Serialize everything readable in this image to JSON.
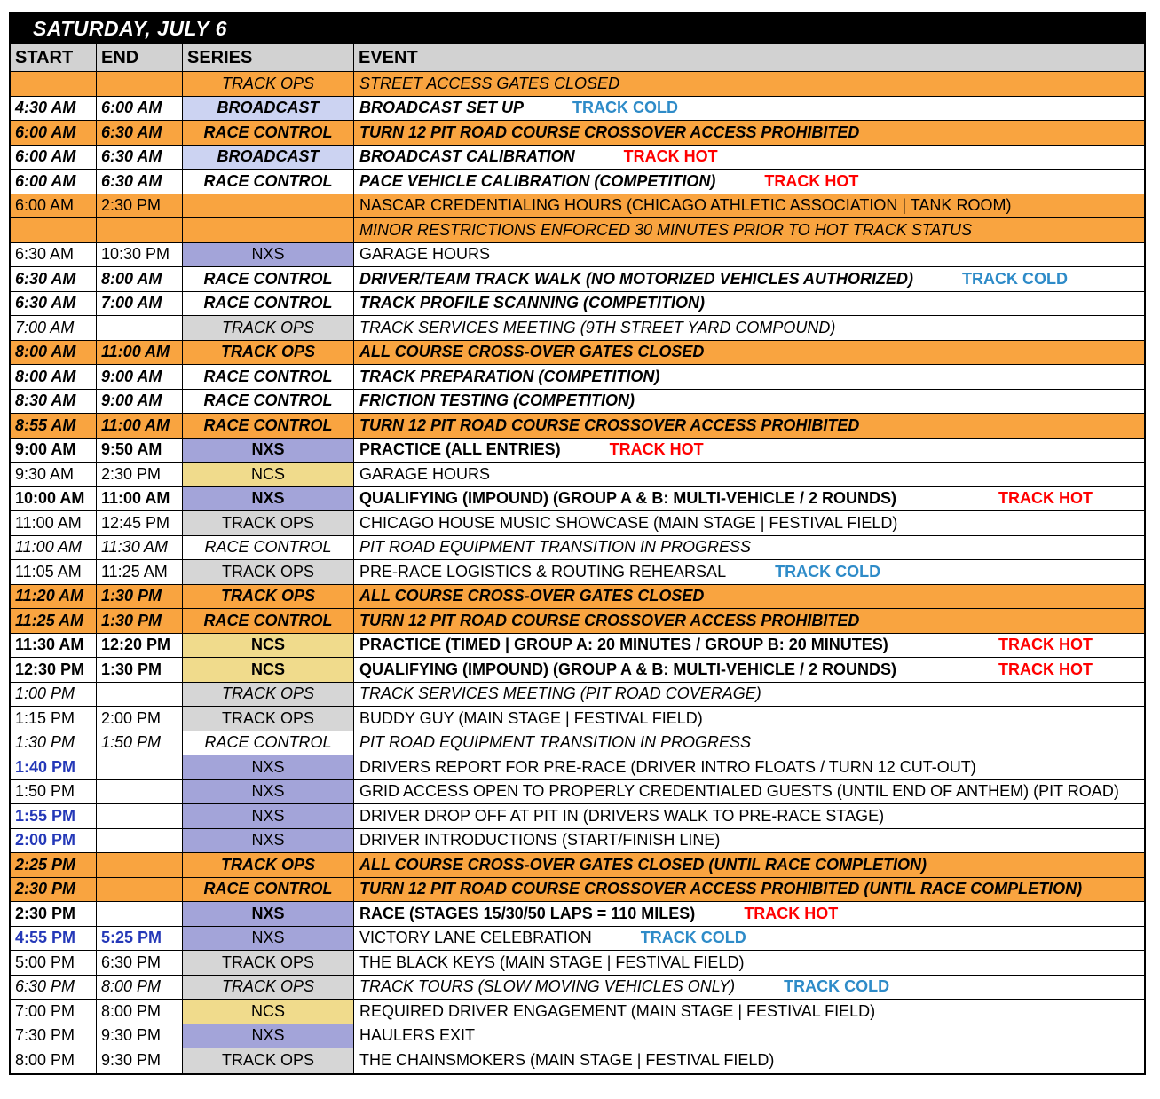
{
  "title": "SATURDAY, JULY 6",
  "columns": [
    "START",
    "END",
    "SERIES",
    "EVENT"
  ],
  "legend": {
    "hot": "TRACK HOT",
    "cold": "TRACK COLD"
  },
  "colors": {
    "highlight_row": "#F9A440",
    "nxs": "#A3A4D9",
    "ncs": "#F0DB8C",
    "broadcast": "#CCD3F2",
    "track_ops": "#D6D6D6",
    "header": "#D2D2D2",
    "track_hot": "#FF0000",
    "track_cold": "#2E8BC8",
    "key_time_blue": "#2438B8"
  },
  "rows": [
    {
      "start": "",
      "end": "",
      "series": "TRACK OPS",
      "kind": "ops",
      "event": "STREET ACCESS GATES CLOSED",
      "status": "",
      "emph": "i",
      "hl": true
    },
    {
      "start": "4:30 AM",
      "end": "6:00 AM",
      "series": "BROADCAST",
      "kind": "broadcast",
      "event": "BROADCAST SET UP",
      "status": "cold",
      "emph": "bi",
      "hl": false
    },
    {
      "start": "6:00 AM",
      "end": "6:30 AM",
      "series": "RACE CONTROL",
      "kind": "rc",
      "event": "TURN 12 PIT ROAD COURSE CROSSOVER ACCESS PROHIBITED",
      "status": "",
      "emph": "bi",
      "hl": true
    },
    {
      "start": "6:00 AM",
      "end": "6:30 AM",
      "series": "BROADCAST",
      "kind": "broadcast",
      "event": "BROADCAST CALIBRATION",
      "status": "hot",
      "emph": "bi",
      "hl": false
    },
    {
      "start": "6:00 AM",
      "end": "6:30 AM",
      "series": "RACE CONTROL",
      "kind": "rc",
      "event": "PACE VEHICLE CALIBRATION (COMPETITION)",
      "status": "hot",
      "emph": "bi",
      "hl": false
    },
    {
      "start": "6:00 AM",
      "end": "2:30 PM",
      "series": "",
      "kind": "",
      "event": "NASCAR CREDENTIALING HOURS (CHICAGO ATHLETIC ASSOCIATION | TANK ROOM)",
      "status": "",
      "emph": "n",
      "hl": true
    },
    {
      "start": "",
      "end": "",
      "series": "",
      "kind": "",
      "event": "MINOR RESTRICTIONS ENFORCED 30 MINUTES PRIOR TO HOT TRACK STATUS",
      "status": "",
      "emph": "i",
      "hl": true
    },
    {
      "start": "6:30 AM",
      "end": "10:30 PM",
      "series": "NXS",
      "kind": "nxs",
      "event": "GARAGE HOURS",
      "status": "",
      "emph": "n",
      "hl": false
    },
    {
      "start": "6:30 AM",
      "end": "8:00 AM",
      "series": "RACE CONTROL",
      "kind": "rc",
      "event": "DRIVER/TEAM TRACK WALK  (NO MOTORIZED VEHICLES AUTHORIZED)",
      "status": "cold",
      "emph": "bi",
      "hl": false
    },
    {
      "start": "6:30 AM",
      "end": "7:00 AM",
      "series": "RACE CONTROL",
      "kind": "rc",
      "event": "TRACK PROFILE SCANNING (COMPETITION)",
      "status": "",
      "emph": "bi",
      "hl": false
    },
    {
      "start": "7:00 AM",
      "end": "",
      "series": "TRACK OPS",
      "kind": "ops",
      "event": "TRACK SERVICES MEETING (9TH STREET YARD COMPOUND)",
      "status": "",
      "emph": "i",
      "hl": false
    },
    {
      "start": "8:00 AM",
      "end": "11:00 AM",
      "series": "TRACK OPS",
      "kind": "ops",
      "event": "ALL COURSE CROSS-OVER GATES CLOSED",
      "status": "",
      "emph": "bi",
      "hl": true
    },
    {
      "start": "8:00 AM",
      "end": "9:00 AM",
      "series": "RACE CONTROL",
      "kind": "rc",
      "event": "TRACK PREPARATION  (COMPETITION)",
      "status": "",
      "emph": "bi",
      "hl": false
    },
    {
      "start": "8:30 AM",
      "end": "9:00 AM",
      "series": "RACE CONTROL",
      "kind": "rc",
      "event": "FRICTION TESTING  (COMPETITION)",
      "status": "",
      "emph": "bi",
      "hl": false
    },
    {
      "start": "8:55 AM",
      "end": "11:00 AM",
      "series": "RACE CONTROL",
      "kind": "rc",
      "event": "TURN 12 PIT ROAD COURSE CROSSOVER ACCESS PROHIBITED",
      "status": "",
      "emph": "bi",
      "hl": true
    },
    {
      "start": "9:00 AM",
      "end": "9:50 AM",
      "series": "NXS",
      "kind": "nxs",
      "event": "PRACTICE (ALL ENTRIES)",
      "status": "hot",
      "emph": "b",
      "hl": false
    },
    {
      "start": "9:30 AM",
      "end": "2:30 PM",
      "series": "NCS",
      "kind": "ncs",
      "event": "GARAGE HOURS",
      "status": "",
      "emph": "n",
      "hl": false
    },
    {
      "start": "10:00 AM",
      "end": "11:00 AM",
      "series": "NXS",
      "kind": "nxs",
      "event": "QUALIFYING (IMPOUND) (GROUP A & B: MULTI-VEHICLE / 2 ROUNDS)",
      "status": "hot",
      "emph": "b",
      "hl": false,
      "status_pos": "right"
    },
    {
      "start": "11:00 AM",
      "end": "12:45 PM",
      "series": "TRACK OPS",
      "kind": "ops",
      "event": "CHICAGO HOUSE MUSIC SHOWCASE (MAIN STAGE | FESTIVAL FIELD)",
      "status": "",
      "emph": "n",
      "hl": false
    },
    {
      "start": "11:00 AM",
      "end": "11:30 AM",
      "series": "RACE CONTROL",
      "kind": "rc",
      "event": "PIT ROAD EQUIPMENT TRANSITION IN PROGRESS",
      "status": "",
      "emph": "i",
      "hl": false
    },
    {
      "start": "11:05 AM",
      "end": "11:25 AM",
      "series": "TRACK OPS",
      "kind": "ops",
      "event": "PRE-RACE LOGISTICS & ROUTING REHEARSAL",
      "status": "cold",
      "emph": "n",
      "hl": false
    },
    {
      "start": "11:20 AM",
      "end": "1:30 PM",
      "series": "TRACK OPS",
      "kind": "ops",
      "event": "ALL COURSE CROSS-OVER GATES CLOSED",
      "status": "",
      "emph": "bi",
      "hl": true
    },
    {
      "start": "11:25 AM",
      "end": "1:30 PM",
      "series": "RACE CONTROL",
      "kind": "rc",
      "event": "TURN 12 PIT ROAD COURSE CROSSOVER ACCESS PROHIBITED",
      "status": "",
      "emph": "bi",
      "hl": true
    },
    {
      "start": "11:30 AM",
      "end": "12:20 PM",
      "series": "NCS",
      "kind": "ncs",
      "event": "PRACTICE (TIMED | GROUP A: 20 MINUTES / GROUP B: 20 MINUTES)",
      "status": "hot",
      "emph": "b",
      "hl": false,
      "status_pos": "right"
    },
    {
      "start": "12:30 PM",
      "end": "1:30 PM",
      "series": "NCS",
      "kind": "ncs",
      "event": "QUALIFYING (IMPOUND) (GROUP A & B: MULTI-VEHICLE / 2 ROUNDS)",
      "status": "hot",
      "emph": "b",
      "hl": false,
      "status_pos": "right"
    },
    {
      "start": "1:00 PM",
      "end": "",
      "series": "TRACK OPS",
      "kind": "ops",
      "event": "TRACK SERVICES MEETING (PIT ROAD COVERAGE)",
      "status": "",
      "emph": "i",
      "hl": false
    },
    {
      "start": "1:15 PM",
      "end": "2:00 PM",
      "series": "TRACK OPS",
      "kind": "ops",
      "event": "BUDDY GUY (MAIN STAGE | FESTIVAL FIELD)",
      "status": "",
      "emph": "n",
      "hl": false
    },
    {
      "start": "1:30 PM",
      "end": "1:50 PM",
      "series": "RACE CONTROL",
      "kind": "rc",
      "event": "PIT ROAD EQUIPMENT TRANSITION IN PROGRESS",
      "status": "",
      "emph": "i",
      "hl": false
    },
    {
      "start": "1:40 PM",
      "end": "",
      "series": "NXS",
      "kind": "nxs",
      "event": "DRIVERS REPORT FOR PRE-RACE (DRIVER INTRO FLOATS / TURN 12 CUT-OUT)",
      "status": "",
      "emph": "n",
      "hl": false,
      "start_blue": true
    },
    {
      "start": "1:50 PM",
      "end": "",
      "series": "NXS",
      "kind": "nxs",
      "event": "GRID ACCESS OPEN TO PROPERLY CREDENTIALED GUESTS (UNTIL END OF ANTHEM) (PIT ROAD)",
      "status": "",
      "emph": "n",
      "hl": false
    },
    {
      "start": "1:55 PM",
      "end": "",
      "series": "NXS",
      "kind": "nxs",
      "event": "DRIVER DROP OFF AT PIT IN (DRIVERS WALK TO PRE-RACE STAGE)",
      "status": "",
      "emph": "n",
      "hl": false,
      "start_blue": true
    },
    {
      "start": "2:00 PM",
      "end": "",
      "series": "NXS",
      "kind": "nxs",
      "event": "DRIVER INTRODUCTIONS (START/FINISH LINE)",
      "status": "",
      "emph": "n",
      "hl": false,
      "start_blue": true
    },
    {
      "start": "2:25 PM",
      "end": "",
      "series": "TRACK OPS",
      "kind": "ops",
      "event": "ALL COURSE CROSS-OVER GATES CLOSED (UNTIL RACE COMPLETION)",
      "status": "",
      "emph": "bi",
      "hl": true
    },
    {
      "start": "2:30 PM",
      "end": "",
      "series": "RACE CONTROL",
      "kind": "rc",
      "event": "TURN 12 PIT ROAD COURSE CROSSOVER ACCESS PROHIBITED (UNTIL RACE COMPLETION)",
      "status": "",
      "emph": "bi",
      "hl": true
    },
    {
      "start": "2:30 PM",
      "end": "",
      "series": "NXS",
      "kind": "nxs",
      "event": "RACE (STAGES 15/30/50 LAPS = 110 MILES)",
      "status": "hot",
      "emph": "b",
      "hl": false
    },
    {
      "start": "4:55 PM",
      "end": "5:25 PM",
      "series": "NXS",
      "kind": "nxs",
      "event": "VICTORY LANE CELEBRATION",
      "status": "cold",
      "emph": "n",
      "hl": false,
      "start_blue": true,
      "end_blue": true
    },
    {
      "start": "5:00 PM",
      "end": "6:30 PM",
      "series": "TRACK OPS",
      "kind": "ops",
      "event": "THE BLACK KEYS (MAIN STAGE | FESTIVAL FIELD)",
      "status": "",
      "emph": "n",
      "hl": false
    },
    {
      "start": "6:30 PM",
      "end": "8:00 PM",
      "series": "TRACK OPS",
      "kind": "ops",
      "event": "TRACK TOURS (SLOW MOVING VEHICLES ONLY)",
      "status": "cold",
      "emph": "i",
      "hl": false
    },
    {
      "start": "7:00 PM",
      "end": "8:00 PM",
      "series": "NCS",
      "kind": "ncs",
      "event": "REQUIRED DRIVER ENGAGEMENT (MAIN STAGE | FESTIVAL FIELD)",
      "status": "",
      "emph": "n",
      "hl": false
    },
    {
      "start": "7:30 PM",
      "end": "9:30 PM",
      "series": "NXS",
      "kind": "nxs",
      "event": "HAULERS EXIT",
      "status": "",
      "emph": "n",
      "hl": false
    },
    {
      "start": "8:00 PM",
      "end": "9:30 PM",
      "series": "TRACK OPS",
      "kind": "ops",
      "event": "THE CHAINSMOKERS (MAIN STAGE | FESTIVAL FIELD)",
      "status": "",
      "emph": "n",
      "hl": false
    }
  ]
}
